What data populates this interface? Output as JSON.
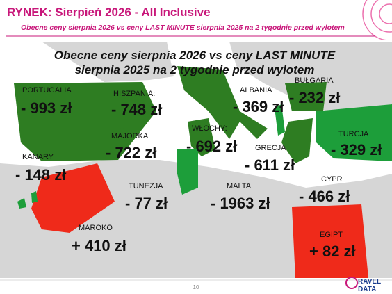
{
  "header": {
    "title": "RYNEK: Sierpień 2026 - All Inclusive",
    "subtitle": "Obecne ceny sierpnia 2026 vs ceny LAST MINUTE sierpnia 2025 na 2 tygodnie przed wylotem"
  },
  "map_title": [
    "Obecne ceny sierpnia 2026 vs ceny LAST MINUTE",
    "sierpnia 2025 na 2 tygodnie przed wylotem"
  ],
  "regions": [
    {
      "name": "PORTUGALIA",
      "price": "- 993 zł"
    },
    {
      "name": "HISZPANIA:",
      "price": "- 748 zł"
    },
    {
      "name": "ALBANIA",
      "price": "- 369 zł"
    },
    {
      "name": "BUŁGARIA",
      "price": "- 232 zł"
    },
    {
      "name": "TURCJA",
      "price": "- 329 zł"
    },
    {
      "name": "WŁOCHY:",
      "price": "- 692 zł"
    },
    {
      "name": "GRECJA",
      "price": "- 611 zł"
    },
    {
      "name": "MAJORKA",
      "price": "- 722 zł"
    },
    {
      "name": "KANARY",
      "price": "- 148 zł"
    },
    {
      "name": "TUNEZJA",
      "price": "- 77 zł"
    },
    {
      "name": "MALTA",
      "price": "- 1963 zł"
    },
    {
      "name": "CYPR",
      "price": "- 466 zł"
    },
    {
      "name": "MAROKO",
      "price": "+ 410 zł"
    },
    {
      "name": "EGIPT",
      "price": "+ 82 zł"
    }
  ],
  "page_number": "10",
  "logo": [
    "RAVEL",
    "DATA"
  ]
}
